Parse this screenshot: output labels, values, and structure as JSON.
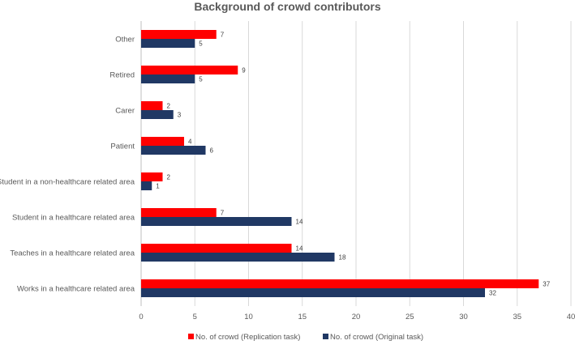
{
  "chart_data": {
    "type": "bar",
    "orientation": "horizontal",
    "title": "Background of crowd contributors",
    "categories": [
      "Other",
      "Retired",
      "Carer",
      "Patient",
      "Student in a non-healthcare related area",
      "Student in a healthcare related area",
      "Teaches in a healthcare related area",
      "Works in a healthcare related area"
    ],
    "series": [
      {
        "name": "No. of crowd (Replication task)",
        "color": "#ff0000",
        "values": [
          7,
          9,
          2,
          4,
          2,
          7,
          14,
          37
        ]
      },
      {
        "name": "No. of crowd (Original task)",
        "color": "#203864",
        "values": [
          5,
          5,
          3,
          6,
          1,
          14,
          18,
          32
        ]
      }
    ],
    "xlim": [
      0,
      40
    ],
    "xticks": [
      0,
      5,
      10,
      15,
      20,
      25,
      30,
      35,
      40
    ],
    "xlabel": "",
    "ylabel": "",
    "grid": true,
    "legend_position": "bottom"
  }
}
